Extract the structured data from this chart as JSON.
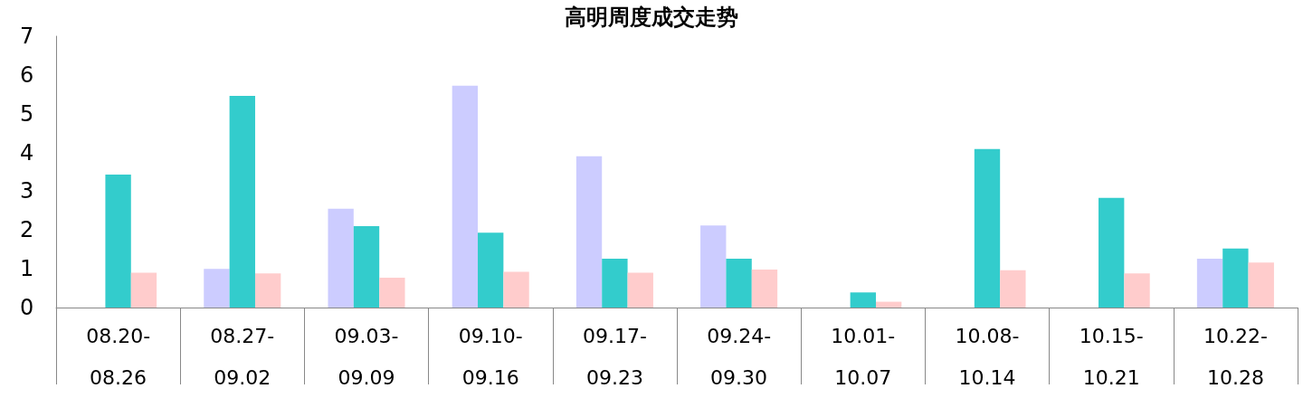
{
  "chart_data": {
    "type": "bar",
    "title": "高明周度成交走势",
    "categories": [
      "08.20-08.26",
      "08.27-09.02",
      "09.03-09.09",
      "09.10-09.16",
      "09.17-09.23",
      "09.24-09.30",
      "10.01-10.07",
      "10.08-10.14",
      "10.15-10.21",
      "10.22-10.28"
    ],
    "series": [
      {
        "color": "#ccccff",
        "values": [
          null,
          1.0,
          2.55,
          5.72,
          3.9,
          2.12,
          null,
          null,
          null,
          1.26
        ]
      },
      {
        "color": "#33cccc",
        "values": [
          3.43,
          5.46,
          2.1,
          1.93,
          1.26,
          1.26,
          0.39,
          4.09,
          2.83,
          1.52
        ]
      },
      {
        "color": "#ffcccc",
        "values": [
          0.9,
          0.88,
          0.77,
          0.92,
          0.9,
          0.98,
          0.15,
          0.96,
          0.88,
          1.16
        ]
      }
    ],
    "ylim": [
      0,
      7
    ],
    "yticks": [
      0,
      1,
      2,
      3,
      4,
      5,
      6,
      7
    ],
    "grid": false
  }
}
